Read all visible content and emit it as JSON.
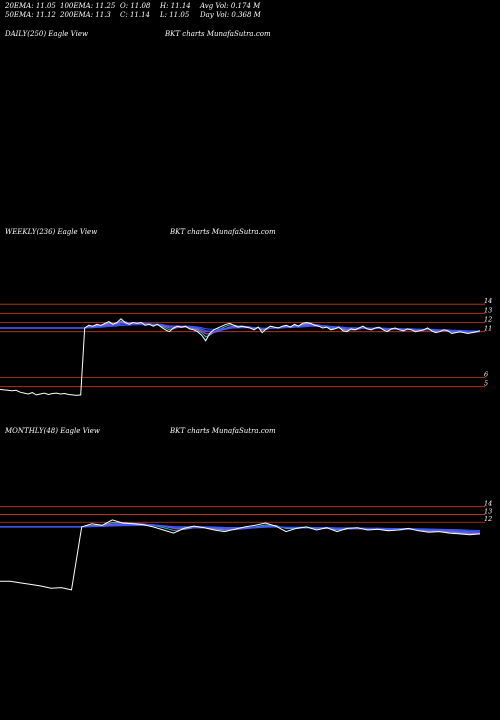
{
  "header": {
    "row1": [
      {
        "label": "20EMA: 11.05"
      },
      {
        "label": "100EMA: 11.25"
      },
      {
        "label": "O: 11.08"
      },
      {
        "label": "H: 11.14"
      },
      {
        "label": "Avg Vol: 0.174  M"
      }
    ],
    "row2": [
      {
        "label": "50EMA: 11.12"
      },
      {
        "label": "200EMA: 11.3"
      },
      {
        "label": "C: 11.14"
      },
      {
        "label": "L: 11.05"
      },
      {
        "label": "Day Vol: 0.368  M"
      }
    ]
  },
  "panels": [
    {
      "title": "DAILY(250) Eagle  View",
      "watermark": "BKT charts MunafaSutra.com"
    },
    {
      "title": "WEEKLY(236) Eagle  View",
      "watermark": "BKT charts MunafaSutra.com"
    },
    {
      "title": "MONTHLY(48) Eagle  View",
      "watermark": "BKT charts MunafaSutra.com"
    }
  ],
  "colors": {
    "background": "#000000",
    "price": "#ffffff",
    "level_lines": "#cc3b1e",
    "ema_blue": "#3a5cff",
    "ema_purple": "#b04bd8",
    "ema_cyan": "#26c6da"
  },
  "chart_data": [
    {
      "type": "line",
      "panel": "weekly",
      "x": [
        0,
        1,
        2,
        3,
        4,
        5,
        6,
        7,
        8,
        9,
        10,
        11,
        12,
        13,
        14,
        15,
        16,
        17,
        18,
        19,
        20,
        21,
        22,
        23,
        24,
        25,
        26,
        27,
        28,
        29,
        30,
        31,
        32,
        33,
        34,
        35,
        36,
        37,
        38,
        39,
        40,
        41,
        42,
        43,
        44,
        45,
        46,
        47,
        48,
        49,
        50,
        51,
        52,
        53,
        54,
        55,
        56,
        57,
        58,
        59,
        60,
        61,
        62,
        63,
        64,
        65,
        66,
        67,
        68,
        69,
        70,
        71,
        72,
        73,
        74,
        75,
        76,
        77,
        78,
        79,
        80,
        81,
        82,
        83,
        84,
        85,
        86,
        87,
        88,
        89,
        90,
        91,
        92,
        93,
        94,
        95,
        96,
        97,
        98,
        99,
        100,
        101,
        102,
        103,
        104,
        105,
        106,
        107,
        108,
        109,
        110,
        111,
        112,
        113,
        114,
        115,
        116,
        117,
        118,
        119
      ],
      "series": [
        {
          "values": [
            4.7,
            4.65,
            4.6,
            4.55,
            4.6,
            4.4,
            4.3,
            4.2,
            4.35,
            4.1,
            4.2,
            4.3,
            4.15,
            4.25,
            4.3,
            4.2,
            4.25,
            4.15,
            4.1,
            4.05,
            4.1,
            11.4,
            11.7,
            11.6,
            11.8,
            11.7,
            11.9,
            12.1,
            11.8,
            12.0,
            12.4,
            12.0,
            11.8,
            12.0,
            11.9,
            12.0,
            11.7,
            11.8,
            11.6,
            11.8,
            11.5,
            11.2,
            11.0,
            11.4,
            11.6,
            11.5,
            11.6,
            11.3,
            11.2,
            11.0,
            10.6,
            10.0,
            10.8,
            11.2,
            11.4,
            11.6,
            11.8,
            11.9,
            11.7,
            11.5,
            11.6,
            11.5,
            11.4,
            11.2,
            11.5,
            10.9,
            11.3,
            11.6,
            11.5,
            11.4,
            11.6,
            11.7,
            11.5,
            11.8,
            11.6,
            11.9,
            12.0,
            11.9,
            11.7,
            11.6,
            11.4,
            11.5,
            11.2,
            11.3,
            11.5,
            11.1,
            11.0,
            11.3,
            11.2,
            11.4,
            11.6,
            11.3,
            11.2,
            11.4,
            11.5,
            11.2,
            11.0,
            11.3,
            11.4,
            11.2,
            11.1,
            11.3,
            11.2,
            11.0,
            11.1,
            11.2,
            11.4,
            11.1,
            10.9,
            11.0,
            11.2,
            11.1,
            10.8,
            10.9,
            11.0,
            10.9,
            10.8,
            10.9,
            11.0,
            11.1
          ]
        }
      ],
      "ylim": [
        3.0,
        15.0
      ],
      "level_lines": [
        14,
        13,
        12,
        11,
        6,
        5
      ],
      "tick_labels": [
        "14",
        "13",
        "12",
        "11",
        "6",
        "5"
      ]
    },
    {
      "type": "line",
      "panel": "monthly",
      "x": [
        0,
        1,
        2,
        3,
        4,
        5,
        6,
        7,
        8,
        9,
        10,
        11,
        12,
        13,
        14,
        15,
        16,
        17,
        18,
        19,
        20,
        21,
        22,
        23,
        24,
        25,
        26,
        27,
        28,
        29,
        30,
        31,
        32,
        33,
        34,
        35,
        36,
        37,
        38,
        39,
        40,
        41,
        42,
        43,
        44,
        45,
        46,
        47
      ],
      "series": [
        {
          "values": [
            4.4,
            4.4,
            4.2,
            4.0,
            3.8,
            3.5,
            3.6,
            3.3,
            11.4,
            11.8,
            11.6,
            12.3,
            11.9,
            11.8,
            11.7,
            11.4,
            11.0,
            10.6,
            11.2,
            11.5,
            11.3,
            11.0,
            10.8,
            11.1,
            11.4,
            11.6,
            11.9,
            11.5,
            10.8,
            11.2,
            11.4,
            11.0,
            11.3,
            10.8,
            11.2,
            11.3,
            11.0,
            11.1,
            10.9,
            11.0,
            11.2,
            10.9,
            10.7,
            10.8,
            10.6,
            10.5,
            10.4,
            10.5
          ]
        }
      ],
      "ylim": [
        2.0,
        15.5
      ],
      "level_lines": [
        14,
        13,
        12
      ],
      "tick_labels": [
        "14",
        "13",
        "12"
      ]
    }
  ]
}
